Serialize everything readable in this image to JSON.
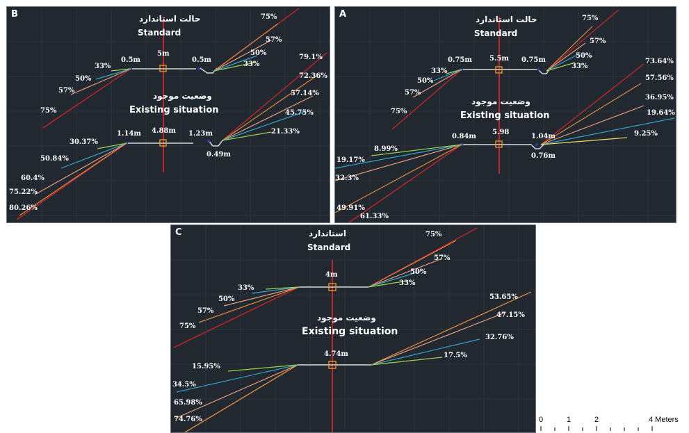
{
  "colors": {
    "background": "#212830",
    "red": "#c0262c",
    "orange": "#e08a3c",
    "salmon": "#e6a080",
    "cyan": "#2fa6c8",
    "green": "#9bd24b",
    "yellow": "#e8e06a",
    "axis": "#c0262c",
    "road": "#d8d8d8",
    "marker": "#f0a020"
  },
  "panels": {
    "B": {
      "tag": "B",
      "standard_title_fa": "حالت استاندارد",
      "standard_title_en": "Standard",
      "existing_title_fa": "وضعیت موجود",
      "existing_title_en": "Existing situation",
      "standard_dims": {
        "left": "0.5m",
        "center": "5m",
        "right": "0.5m"
      },
      "standard_right_slopes": [
        "75%",
        "57%",
        "50%",
        "33%"
      ],
      "standard_left_slopes": [
        "33%",
        "50%",
        "57%",
        "75%"
      ],
      "existing_dims": {
        "left": "1.14m",
        "center": "4.88m",
        "right": "1.23m",
        "ditch": "0.49m"
      },
      "existing_right_slopes": [
        "79.1%",
        "72.36%",
        "57.14%",
        "45.75%",
        "21.33%"
      ],
      "existing_left_slopes": [
        "30.37%",
        "50.84%",
        "60.4%",
        "75.22%",
        "80.26%"
      ]
    },
    "A": {
      "tag": "A",
      "standard_title_fa": "حالت استاندارد",
      "standard_title_en": "Standard",
      "existing_title_fa": "وضعیت موجود",
      "existing_title_en": "Existing situation",
      "standard_dims": {
        "left": "0.75m",
        "center": "5.5m",
        "right": "0.75m"
      },
      "standard_right_slopes": [
        "75%",
        "57%",
        "50%",
        "33%"
      ],
      "standard_left_slopes": [
        "33%",
        "50%",
        "57%",
        "75%"
      ],
      "existing_dims": {
        "left": "0.84m",
        "center": "5.98",
        "right": "1.04m",
        "ditch": "0.76m"
      },
      "existing_right_slopes": [
        "73.64%",
        "57.56%",
        "36.95%",
        "19.64%",
        "9.25%"
      ],
      "existing_left_slopes": [
        "8.99%",
        "19.17%",
        "32.3%",
        "49.91%",
        "61.33%"
      ]
    },
    "C": {
      "tag": "C",
      "standard_title_fa": "استاندارد",
      "standard_title_en": "Standard",
      "existing_title_fa": "وضعیت موجود",
      "existing_title_en": "Existing situation",
      "standard_dims": {
        "center": "4m"
      },
      "standard_right_slopes": [
        "75%",
        "57%",
        "50%",
        "33%"
      ],
      "standard_left_slopes": [
        "33%",
        "50%",
        "57%",
        "75%"
      ],
      "existing_dims": {
        "center": "4.74m"
      },
      "existing_right_slopes": [
        "53.65%",
        "47.15%",
        "32.76%",
        "17.5%"
      ],
      "existing_left_slopes": [
        "15.95%",
        "34.5%",
        "65.98%",
        "74.76%"
      ]
    }
  },
  "scale_bar": {
    "labels": [
      "0",
      "1",
      "2",
      "4 Meters"
    ]
  }
}
